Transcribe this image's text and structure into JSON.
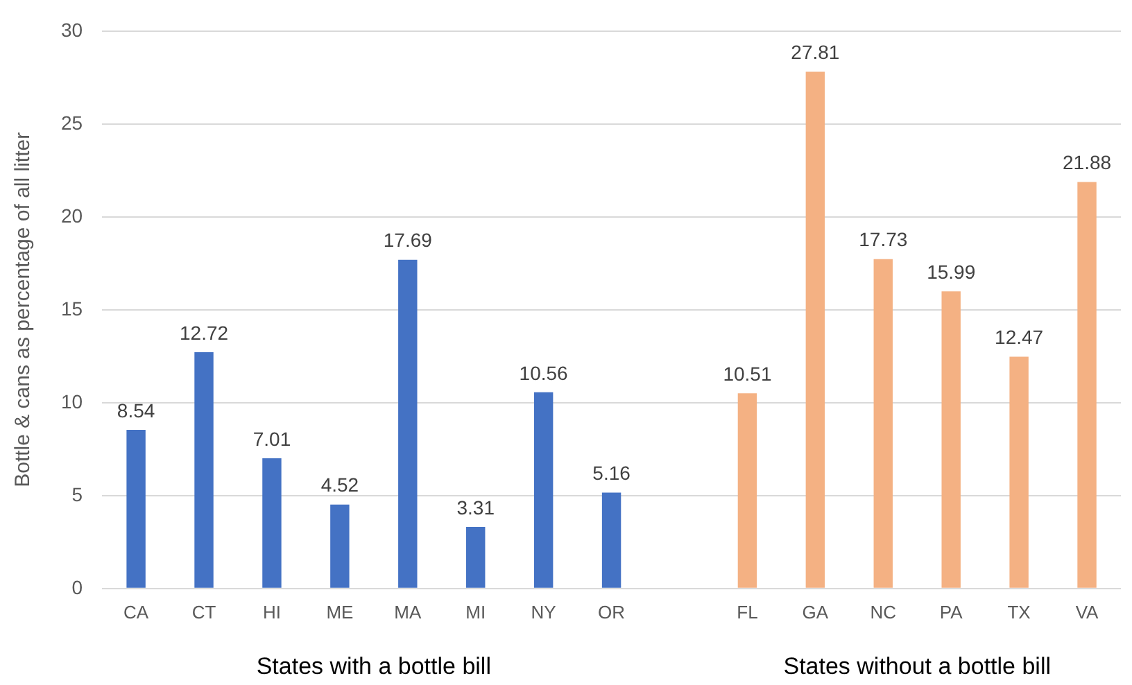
{
  "chart_data": {
    "type": "bar",
    "ylabel": "Bottle & cans as percentage of all litter",
    "categories": [
      "CA",
      "CT",
      "HI",
      "ME",
      "MA",
      "MI",
      "NY",
      "OR",
      null,
      "FL",
      "GA",
      "NC",
      "PA",
      "TX",
      "VA"
    ],
    "values": [
      8.54,
      12.72,
      7.01,
      4.52,
      17.69,
      3.31,
      10.56,
      5.16,
      null,
      10.51,
      27.81,
      17.73,
      15.99,
      12.47,
      21.88
    ],
    "colors": [
      "#4472c4",
      "#4472c4",
      "#4472c4",
      "#4472c4",
      "#4472c4",
      "#4472c4",
      "#4472c4",
      "#4472c4",
      null,
      "#f4b183",
      "#f4b183",
      "#f4b183",
      "#f4b183",
      "#f4b183",
      "#f4b183"
    ],
    "ylim": [
      0,
      30
    ],
    "yticks": [
      0,
      5,
      10,
      15,
      20,
      25,
      30
    ],
    "grid": "y",
    "data_labels": true,
    "legend": false,
    "annotations": [
      "States with a bottle bill",
      "States without a bottle bill"
    ]
  }
}
